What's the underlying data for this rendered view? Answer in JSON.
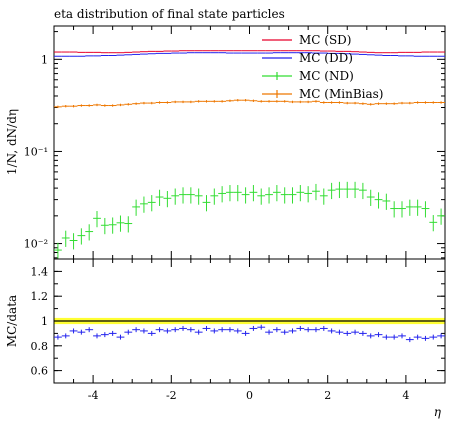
{
  "chart_data": {
    "type": "scatter",
    "title": "eta distribution of final state particles",
    "xlabel": "η",
    "main": {
      "ylabel": "1/N, dN/dη",
      "yscale": "log",
      "ylim": [
        0.0068,
        2.3
      ],
      "yticks": [
        {
          "value": 0.01,
          "label": "10⁻²"
        },
        {
          "value": 0.1,
          "label": "10⁻¹"
        },
        {
          "value": 1,
          "label": "1"
        }
      ]
    },
    "ratio": {
      "ylabel": "MC/data",
      "ylim": [
        0.5,
        1.5
      ],
      "yticks": [
        0.6,
        0.8,
        1,
        1.2,
        1.4
      ],
      "band": [
        0.975,
        1.025
      ],
      "band_color": "#ffff33",
      "reference": 1
    },
    "xlim": [
      -5,
      5
    ],
    "xticks": [
      -4,
      -2,
      0,
      2,
      4
    ],
    "legend_position": "top-right",
    "x": [
      -4.9,
      -4.7,
      -4.5,
      -4.3,
      -4.1,
      -3.9,
      -3.7,
      -3.5,
      -3.3,
      -3.1,
      -2.9,
      -2.7,
      -2.5,
      -2.3,
      -2.1,
      -1.9,
      -1.7,
      -1.5,
      -1.3,
      -1.1,
      -0.9,
      -0.7,
      -0.5,
      -0.3,
      -0.1,
      0.1,
      0.3,
      0.5,
      0.7,
      0.9,
      1.1,
      1.3,
      1.5,
      1.7,
      1.9,
      2.1,
      2.3,
      2.5,
      2.7,
      2.9,
      3.1,
      3.3,
      3.5,
      3.7,
      3.9,
      4.1,
      4.3,
      4.5,
      4.7,
      4.9
    ],
    "xerr": 0.1,
    "series": [
      {
        "name": "MC (SD)",
        "color": "#e8002a",
        "style": "line",
        "values": [
          1.2,
          1.2,
          1.2,
          1.19,
          1.19,
          1.19,
          1.18,
          1.18,
          1.18,
          1.19,
          1.2,
          1.21,
          1.22,
          1.22,
          1.23,
          1.23,
          1.24,
          1.24,
          1.24,
          1.24,
          1.24,
          1.24,
          1.24,
          1.24,
          1.24,
          1.24,
          1.24,
          1.24,
          1.24,
          1.24,
          1.24,
          1.24,
          1.24,
          1.24,
          1.23,
          1.23,
          1.22,
          1.22,
          1.21,
          1.2,
          1.19,
          1.18,
          1.18,
          1.18,
          1.19,
          1.19,
          1.19,
          1.2,
          1.2,
          1.2
        ]
      },
      {
        "name": "MC (DD)",
        "color": "#2222ee",
        "style": "line",
        "values": [
          1.08,
          1.08,
          1.08,
          1.08,
          1.09,
          1.09,
          1.1,
          1.1,
          1.11,
          1.12,
          1.13,
          1.14,
          1.15,
          1.16,
          1.16,
          1.17,
          1.17,
          1.18,
          1.18,
          1.18,
          1.18,
          1.18,
          1.17,
          1.17,
          1.17,
          1.17,
          1.17,
          1.17,
          1.18,
          1.18,
          1.18,
          1.18,
          1.18,
          1.17,
          1.17,
          1.16,
          1.16,
          1.15,
          1.14,
          1.13,
          1.12,
          1.11,
          1.1,
          1.1,
          1.09,
          1.09,
          1.08,
          1.08,
          1.08,
          1.08
        ]
      },
      {
        "name": "MC (ND)",
        "color": "#33dd33",
        "style": "points",
        "values": [
          0.0085,
          0.0115,
          0.0108,
          0.0122,
          0.0135,
          0.0188,
          0.0158,
          0.016,
          0.0168,
          0.0165,
          0.025,
          0.027,
          0.028,
          0.032,
          0.031,
          0.033,
          0.034,
          0.034,
          0.033,
          0.028,
          0.033,
          0.035,
          0.036,
          0.036,
          0.034,
          0.036,
          0.033,
          0.034,
          0.036,
          0.034,
          0.034,
          0.036,
          0.035,
          0.037,
          0.033,
          0.038,
          0.039,
          0.039,
          0.039,
          0.038,
          0.032,
          0.03,
          0.029,
          0.024,
          0.024,
          0.025,
          0.025,
          0.024,
          0.017,
          0.02
        ],
        "yerr_frac": 0.2
      },
      {
        "name": "MC (MinBias)",
        "color": "#ee7700",
        "style": "points",
        "values": [
          0.305,
          0.31,
          0.31,
          0.315,
          0.315,
          0.32,
          0.315,
          0.315,
          0.32,
          0.325,
          0.33,
          0.335,
          0.335,
          0.34,
          0.34,
          0.345,
          0.345,
          0.345,
          0.35,
          0.35,
          0.35,
          0.35,
          0.355,
          0.36,
          0.36,
          0.355,
          0.35,
          0.35,
          0.35,
          0.35,
          0.345,
          0.345,
          0.345,
          0.35,
          0.34,
          0.34,
          0.34,
          0.335,
          0.335,
          0.33,
          0.325,
          0.33,
          0.33,
          0.33,
          0.335,
          0.335,
          0.34,
          0.34,
          0.34,
          0.34
        ],
        "yerr_frac": 0.03
      }
    ],
    "ratio_series": {
      "color": "#2222ee",
      "values": [
        0.87,
        0.88,
        0.92,
        0.91,
        0.93,
        0.88,
        0.89,
        0.9,
        0.87,
        0.91,
        0.93,
        0.92,
        0.9,
        0.93,
        0.92,
        0.93,
        0.94,
        0.93,
        0.91,
        0.94,
        0.92,
        0.93,
        0.93,
        0.92,
        0.9,
        0.94,
        0.95,
        0.91,
        0.93,
        0.91,
        0.92,
        0.94,
        0.93,
        0.93,
        0.94,
        0.92,
        0.91,
        0.9,
        0.91,
        0.9,
        0.88,
        0.89,
        0.87,
        0.87,
        0.88,
        0.85,
        0.87,
        0.86,
        0.87,
        0.88
      ],
      "yerr": 0.02
    }
  }
}
